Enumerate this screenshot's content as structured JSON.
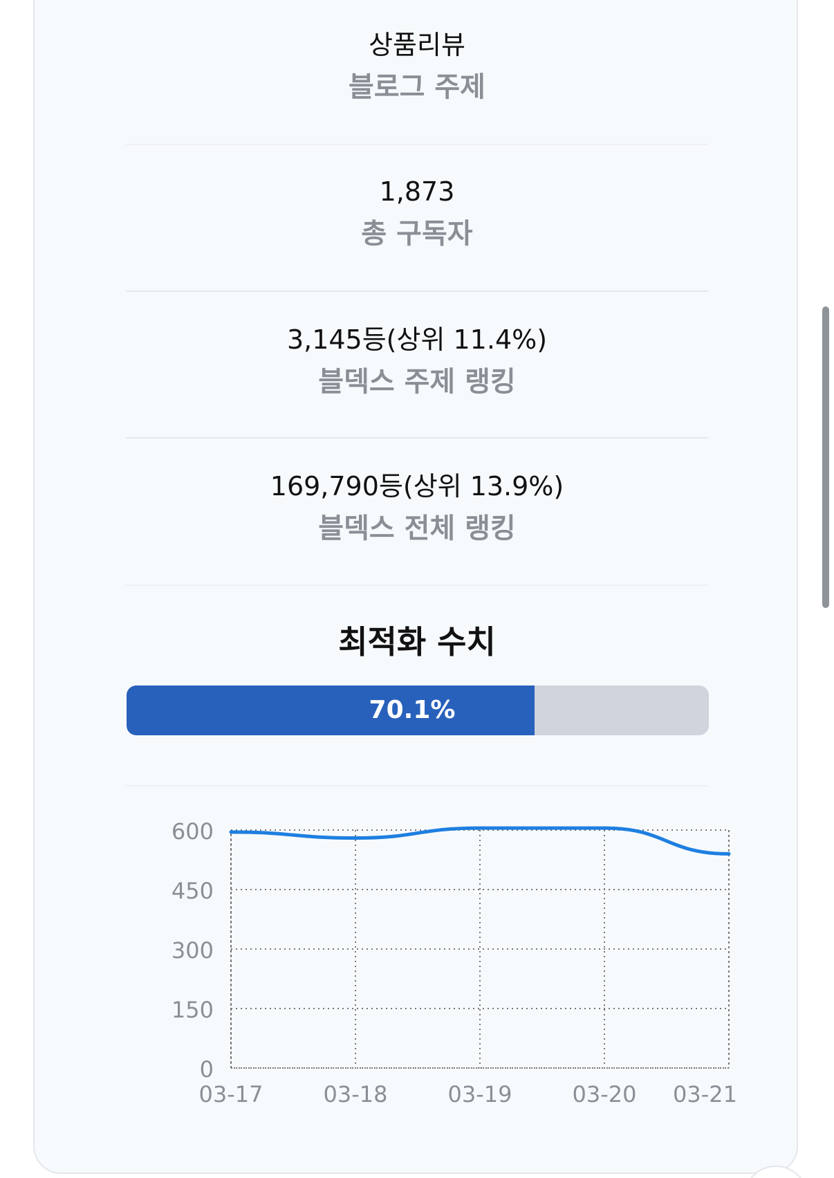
{
  "stats": [
    {
      "value": "상품리뷰",
      "label": "블로그 주제"
    },
    {
      "value": "1,873",
      "label": "총 구독자"
    },
    {
      "value": "3,145등(상위 11.4%)",
      "label": "블덱스 주제 랭킹"
    },
    {
      "value": "169,790등(상위 13.9%)",
      "label": "블덱스 전체 랭킹"
    }
  ],
  "optimization": {
    "title": "최적화 수치",
    "percent_label": "70.1%",
    "percent": 70.1
  },
  "colors": {
    "progress_fill": "#2861bb",
    "progress_track": "#d1d4dc",
    "line": "#1e7fe0",
    "label_gray": "#8a8f96"
  },
  "chart_data": {
    "type": "line",
    "title": "",
    "xlabel": "",
    "ylabel": "",
    "x": [
      "03-17",
      "03-18",
      "03-19",
      "03-20",
      "03-21"
    ],
    "y_ticks": [
      0,
      150,
      300,
      450,
      600
    ],
    "ylim": [
      0,
      600
    ],
    "grid": true,
    "series": [
      {
        "values": [
          595,
          580,
          605,
          605,
          540
        ]
      }
    ]
  }
}
